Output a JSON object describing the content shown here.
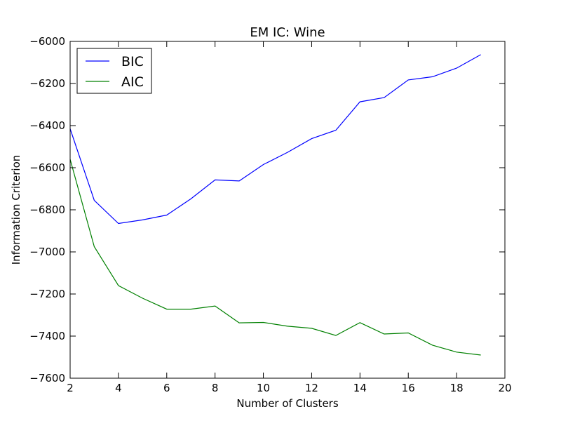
{
  "chart_data": {
    "type": "line",
    "title": "EM IC: Wine",
    "xlabel": "Number of Clusters",
    "ylabel": "Information Criterion",
    "xlim": [
      2,
      20
    ],
    "ylim": [
      -7600,
      -6000
    ],
    "xticks": [
      2,
      4,
      6,
      8,
      10,
      12,
      14,
      16,
      18,
      20
    ],
    "yticks": [
      -6000,
      -6200,
      -6400,
      -6600,
      -6800,
      -7000,
      -7200,
      -7400,
      -7600
    ],
    "xtick_labels": [
      "2",
      "4",
      "6",
      "8",
      "10",
      "12",
      "14",
      "16",
      "18",
      "20"
    ],
    "ytick_labels": [
      "−6000",
      "−6200",
      "−6400",
      "−6600",
      "−6800",
      "−7000",
      "−7200",
      "−7400",
      "−7600"
    ],
    "grid": false,
    "legend_position": "top-left",
    "x": [
      2,
      3,
      4,
      5,
      6,
      7,
      8,
      9,
      10,
      11,
      12,
      13,
      14,
      15,
      16,
      17,
      18,
      19
    ],
    "series": [
      {
        "name": "BIC",
        "color": "#0000ff",
        "values": [
          -6415,
          -6755,
          -6865,
          -6848,
          -6825,
          -6748,
          -6658,
          -6663,
          -6585,
          -6527,
          -6462,
          -6422,
          -6287,
          -6267,
          -6183,
          -6168,
          -6127,
          -6063
        ]
      },
      {
        "name": "AIC",
        "color": "#008000",
        "values": [
          -6560,
          -6975,
          -7160,
          -7220,
          -7272,
          -7272,
          -7257,
          -7337,
          -7335,
          -7353,
          -7363,
          -7397,
          -7336,
          -7390,
          -7385,
          -7443,
          -7476,
          -7490
        ]
      }
    ]
  }
}
